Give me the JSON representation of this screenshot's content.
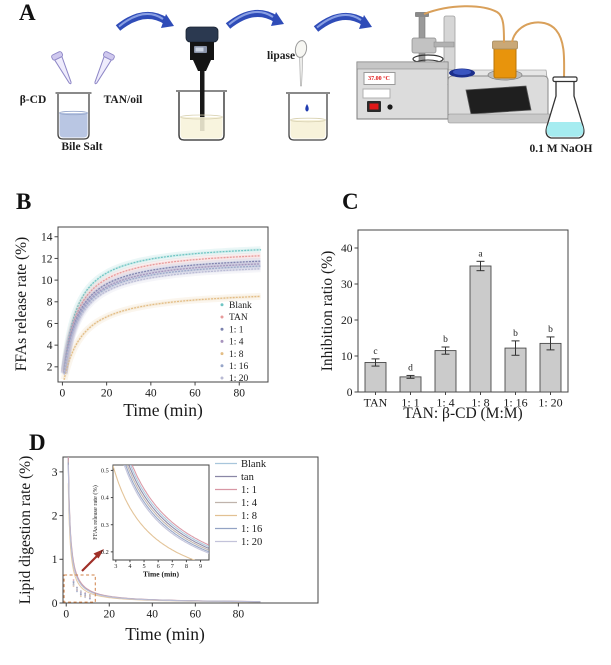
{
  "figure": {
    "background": "#ffffff",
    "panel_labels": {
      "a": "A",
      "b": "B",
      "c": "C",
      "d": "D"
    }
  },
  "panel_a": {
    "labels": {
      "beta_cd": "β-CD",
      "tan_oil": "TAN/oil",
      "bile_salt": "Bile Salt",
      "lipase": "lipase",
      "temperature": "37.00 °C",
      "naoh": "0.1 M NaOH"
    },
    "colors": {
      "arrow_blue": "#2f4cb8",
      "bile_salt_liquid": "#b9c6e3",
      "oil_liquid": "#f7f2da",
      "naoh_liquid": "#a5ecf0",
      "bottle_orange": "#e8940c",
      "tubing": "#d9a05a"
    }
  },
  "chart_data": [
    {
      "panel": "B",
      "type": "line",
      "xlabel": "Time (min)",
      "ylabel": "FFAs release rate (%)",
      "xlim": [
        -2,
        93
      ],
      "ylim": [
        0.6,
        14.9
      ],
      "xticks": [
        0,
        20,
        40,
        60,
        80
      ],
      "yticks": [
        2,
        4,
        6,
        8,
        10,
        12,
        14
      ],
      "legend_position": "inside bottom right",
      "model": "saturating release: y(t) = ymax*(90+h)/90 * t/(t+h), t = 1..90 min",
      "series": [
        {
          "name": "Blank",
          "color": "#6fc5c3",
          "y_at_90": 12.8,
          "half_time": 5.5
        },
        {
          "name": "TAN",
          "color": "#e79a9a",
          "y_at_90": 12.25,
          "half_time": 5.8
        },
        {
          "name": "1: 1",
          "color": "#7b82ae",
          "y_at_90": 11.75,
          "half_time": 6.0
        },
        {
          "name": "1: 4",
          "color": "#a793bd",
          "y_at_90": 11.5,
          "half_time": 6.2
        },
        {
          "name": "1: 8",
          "color": "#e3bd85",
          "y_at_90": 8.5,
          "half_time": 8.0
        },
        {
          "name": "1: 16",
          "color": "#97a6c9",
          "y_at_90": 11.3,
          "half_time": 6.2
        },
        {
          "name": "1: 20",
          "color": "#b9bad4",
          "y_at_90": 11.05,
          "half_time": 6.4
        }
      ]
    },
    {
      "panel": "C",
      "type": "bar",
      "xlabel": "TAN: β-CD (M:M)",
      "ylabel": "Inhibition ratio (%)",
      "categories": [
        "TAN",
        "1: 1",
        "1: 4",
        "1: 8",
        "1: 16",
        "1: 20"
      ],
      "values": [
        8.2,
        4.2,
        11.5,
        35.0,
        12.2,
        13.5
      ],
      "errors": [
        1.0,
        0.4,
        1.0,
        1.3,
        2.0,
        1.8
      ],
      "sig_letters": [
        "c",
        "d",
        "b",
        "a",
        "b",
        "b"
      ],
      "ylim": [
        0,
        45
      ],
      "yticks": [
        0,
        10,
        20,
        30,
        40
      ],
      "bar_color": "#cbcbcb",
      "bar_edge_color": "#4a4a4a",
      "grid": false
    },
    {
      "panel": "D",
      "type": "line_with_inset",
      "xlabel": "Time (min)",
      "ylabel": "Lipid digestion rate (%)",
      "xlim": [
        -1.5,
        117
      ],
      "ylim": [
        0,
        3.34
      ],
      "xticks": [
        0,
        20,
        40,
        60,
        80
      ],
      "yticks": [
        0,
        1,
        2,
        3
      ],
      "legend_position": "inside top right",
      "model": "digestion rate decay: y(t) = k/t^1.02, t = 1..90 min",
      "series": [
        {
          "name": "Blank",
          "color": "#a8c6dc",
          "k_main": 3.2,
          "k_inset": 2.1
        },
        {
          "name": "tan",
          "color": "#8a87a6",
          "k_main": 3.15,
          "k_inset": 2.04
        },
        {
          "name": "1: 1",
          "color": "#d897a4",
          "k_main": 3.3,
          "k_inset": 2.16
        },
        {
          "name": "1: 4",
          "color": "#bfb3ac",
          "k_main": 3.1,
          "k_inset": 1.98
        },
        {
          "name": "1: 8",
          "color": "#e2c193",
          "k_main": 2.6,
          "k_inset": 1.45
        },
        {
          "name": "1: 16",
          "color": "#93a3c4",
          "k_main": 3.05,
          "k_inset": 1.92
        },
        {
          "name": "1: 20",
          "color": "#c3c3da",
          "k_main": 3.0,
          "k_inset": 1.87
        }
      ],
      "highlight_box": {
        "x0": -1,
        "x1": 13.5,
        "y0": 0.02,
        "y1": 0.64,
        "color": "#cf8046"
      },
      "arrow_color": "#a03028",
      "inset": {
        "xlabel": "Time (min)",
        "ylabel": "FFAs release rate (%)",
        "xlim": [
          2.8,
          9.6
        ],
        "ylim": [
          0.17,
          0.52
        ],
        "xticks": [
          3,
          4,
          5,
          6,
          7,
          8,
          9
        ],
        "yticks": [
          0.2,
          0.3,
          0.4,
          0.5
        ]
      }
    }
  ]
}
